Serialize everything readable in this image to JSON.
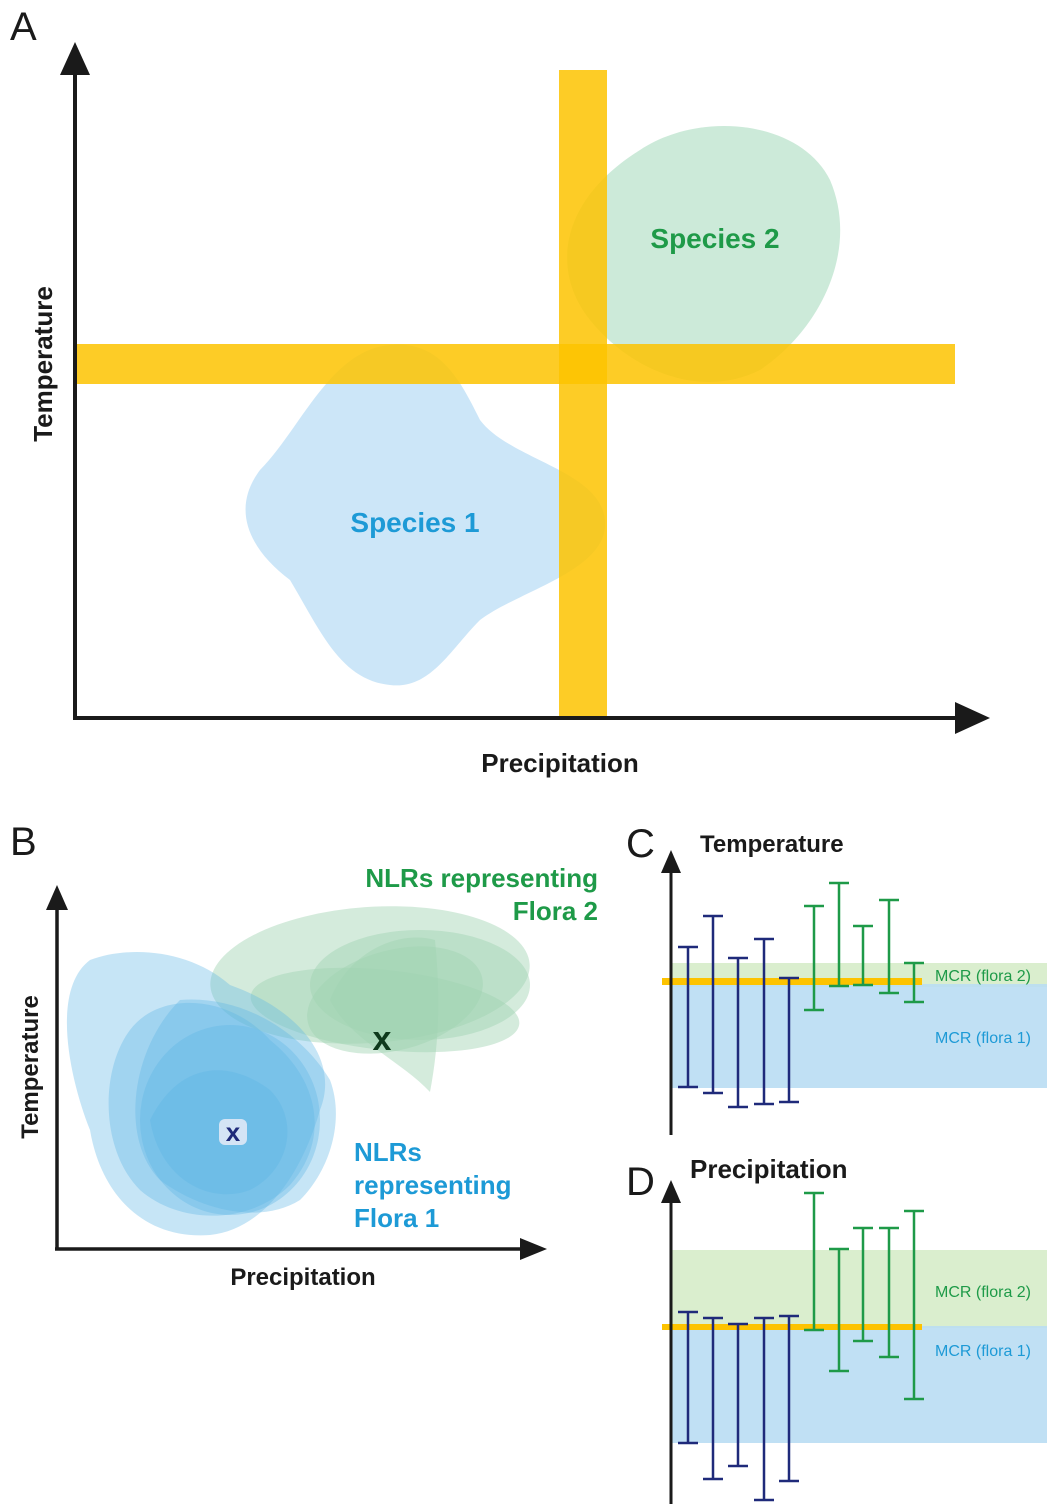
{
  "panel_a": {
    "letter": "A",
    "y_axis_label": "Temperature",
    "x_axis_label": "Precipitation",
    "species1_label": "Species 1",
    "species2_label": "Species 2"
  },
  "panel_b": {
    "letter": "B",
    "y_axis_label": "Temperature",
    "x_axis_label": "Precipitation",
    "flora2_label_line1": "NLRs representing",
    "flora2_label_line2": "Flora 2",
    "flora1_label_line1": "NLRs",
    "flora1_label_line2": "representing",
    "flora1_label_line3": "Flora 1"
  },
  "panel_c": {
    "letter": "C",
    "title": "Temperature",
    "mcr_flora2": "MCR (flora 2)",
    "mcr_flora1": "MCR (flora 1)"
  },
  "panel_d": {
    "letter": "D",
    "title": "Precipitation",
    "mcr_flora2": "MCR (flora 2)",
    "mcr_flora1": "MCR (flora 1)"
  },
  "colors": {
    "axis": "#1a1a1a",
    "yellow": "#fdc300",
    "species1": "#bfe0f6",
    "species2": "#bfe5cf",
    "blue_text": "#1d9ad6",
    "green_text": "#1e9a48",
    "navy_bar": "#1f2a7a",
    "green_bar": "#1e9a48"
  }
}
